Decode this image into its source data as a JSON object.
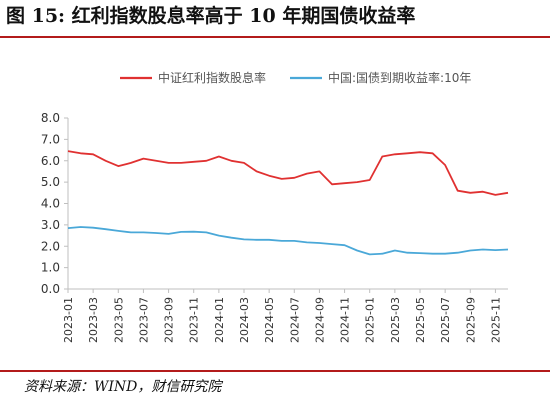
{
  "figure": {
    "title": "图 15:  红利指数股息率高于 10 年期国债收益率",
    "source": "资料来源：WIND，财信研究院"
  },
  "colors": {
    "red": "#e03131",
    "blue": "#4aa8d8",
    "axis": "#bfbfbf",
    "text": "#333333"
  },
  "chart_data": {
    "type": "line",
    "title": "",
    "xlabel": "",
    "ylabel": "",
    "ylim": [
      0,
      8
    ],
    "yticks": [
      "0.0",
      "1.0",
      "2.0",
      "3.0",
      "4.0",
      "5.0",
      "6.0",
      "7.0",
      "8.0"
    ],
    "grid": false,
    "legend_position": "top",
    "x_tick_labels": [
      "2023-01",
      "2023-03",
      "2023-05",
      "2023-07",
      "2023-09",
      "2023-11",
      "2024-01",
      "2024-03",
      "2024-05",
      "2024-07",
      "2024-09",
      "2024-11",
      "2025-01",
      "2025-03",
      "2025-05",
      "2025-07",
      "2025-09",
      "2025-11"
    ],
    "x": [
      "2023-01",
      "2023-02",
      "2023-03",
      "2023-04",
      "2023-05",
      "2023-06",
      "2023-07",
      "2023-08",
      "2023-09",
      "2023-10",
      "2023-11",
      "2023-12",
      "2024-01",
      "2024-02",
      "2024-03",
      "2024-04",
      "2024-05",
      "2024-06",
      "2024-07",
      "2024-08",
      "2024-09",
      "2024-10",
      "2024-11",
      "2024-12",
      "2025-01",
      "2025-02",
      "2025-03",
      "2025-04",
      "2025-05",
      "2025-06",
      "2025-07",
      "2025-08",
      "2025-09",
      "2025-10",
      "2025-11",
      "2025-12"
    ],
    "series": [
      {
        "name": "中证红利指数股息率",
        "color": "#e03131",
        "values": [
          6.45,
          6.35,
          6.3,
          6.0,
          5.75,
          5.9,
          6.1,
          6.0,
          5.9,
          5.9,
          5.95,
          6.0,
          6.2,
          6.0,
          5.9,
          5.5,
          5.3,
          5.15,
          5.2,
          5.4,
          5.5,
          4.9,
          4.95,
          5.0,
          5.1,
          6.2,
          6.3,
          6.35,
          6.4,
          6.35,
          5.8,
          4.6,
          4.5,
          4.55,
          4.4,
          4.5
        ]
      },
      {
        "name": "中国:国债到期收益率:10年",
        "color": "#4aa8d8",
        "values": [
          2.85,
          2.9,
          2.87,
          2.8,
          2.72,
          2.65,
          2.65,
          2.62,
          2.58,
          2.67,
          2.68,
          2.65,
          2.5,
          2.4,
          2.32,
          2.3,
          2.3,
          2.25,
          2.25,
          2.18,
          2.15,
          2.1,
          2.05,
          1.8,
          1.62,
          1.65,
          1.8,
          1.7,
          1.68,
          1.65,
          1.65,
          1.7,
          1.8,
          1.85,
          1.82,
          1.85
        ]
      }
    ],
    "legend": [
      "中证红利指数股息率",
      "中国:国债到期收益率:10年"
    ]
  }
}
